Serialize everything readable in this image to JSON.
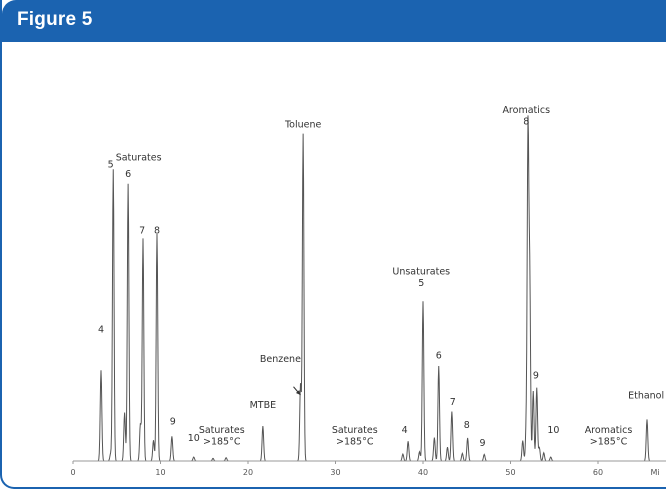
{
  "figure": {
    "title": "Figure 5"
  },
  "colors": {
    "header": "#1b63b0",
    "trace": "#555555",
    "text": "#333333"
  },
  "chart_data": {
    "type": "line",
    "title": "",
    "xlabel": "Mi",
    "ylabel": "",
    "xlim": [
      0,
      70
    ],
    "x_ticks": [
      0,
      10,
      20,
      30,
      40,
      50,
      60
    ],
    "grid": false,
    "legend": "none",
    "peaks": [
      {
        "x": 3.2,
        "h": 0.275
      },
      {
        "x": 4.3,
        "h": 0.022
      },
      {
        "x": 4.6,
        "h": 0.884
      },
      {
        "x": 5.9,
        "h": 0.147
      },
      {
        "x": 6.3,
        "h": 0.84
      },
      {
        "x": 7.7,
        "h": 0.112
      },
      {
        "x": 8.0,
        "h": 0.674
      },
      {
        "x": 9.2,
        "h": 0.063
      },
      {
        "x": 9.6,
        "h": 0.688
      },
      {
        "x": 11.3,
        "h": 0.075
      },
      {
        "x": 13.8,
        "h": 0.012
      },
      {
        "x": 16.0,
        "h": 0.008
      },
      {
        "x": 17.5,
        "h": 0.01
      },
      {
        "x": 21.7,
        "h": 0.106
      },
      {
        "x": 26.0,
        "h": 0.232
      },
      {
        "x": 26.3,
        "h": 0.991
      },
      {
        "x": 37.7,
        "h": 0.021
      },
      {
        "x": 38.3,
        "h": 0.06
      },
      {
        "x": 39.6,
        "h": 0.028
      },
      {
        "x": 40.0,
        "h": 0.484
      },
      {
        "x": 41.3,
        "h": 0.071
      },
      {
        "x": 41.8,
        "h": 0.288
      },
      {
        "x": 42.8,
        "h": 0.042
      },
      {
        "x": 43.3,
        "h": 0.15
      },
      {
        "x": 44.5,
        "h": 0.023
      },
      {
        "x": 45.1,
        "h": 0.07
      },
      {
        "x": 47.0,
        "h": 0.02
      },
      {
        "x": 51.4,
        "h": 0.062
      },
      {
        "x": 51.8,
        "h": 0.098
      },
      {
        "x": 52.0,
        "h": 0.993
      },
      {
        "x": 52.2,
        "h": 0.543
      },
      {
        "x": 52.6,
        "h": 0.212
      },
      {
        "x": 53.0,
        "h": 0.222
      },
      {
        "x": 53.3,
        "h": 0.04
      },
      {
        "x": 53.8,
        "h": 0.025
      },
      {
        "x": 54.6,
        "h": 0.012
      },
      {
        "x": 65.6,
        "h": 0.126
      }
    ],
    "annotations": [
      {
        "text": "4",
        "x": 3.2,
        "y": 0.39
      },
      {
        "text": "Saturates",
        "x": 7.5,
        "y": 0.91
      },
      {
        "text": "5",
        "x": 4.3,
        "y": 0.89
      },
      {
        "text": "6",
        "x": 6.3,
        "y": 0.86
      },
      {
        "text": "7",
        "x": 7.9,
        "y": 0.69
      },
      {
        "text": "8",
        "x": 9.6,
        "y": 0.69
      },
      {
        "text": "9",
        "x": 11.4,
        "y": 0.11
      },
      {
        "text": "10",
        "x": 13.8,
        "y": 0.06
      },
      {
        "text": "Saturates",
        "x": 17.0,
        "y": 0.085
      },
      {
        "text": ">185°C",
        "x": 17.0,
        "y": 0.05
      },
      {
        "text": "MTBE",
        "x": 21.7,
        "y": 0.16
      },
      {
        "text": "Benzene",
        "x": 23.7,
        "y": 0.3
      },
      {
        "text": "Toluene",
        "x": 26.3,
        "y": 1.01
      },
      {
        "text": "Saturates",
        "x": 32.2,
        "y": 0.085
      },
      {
        "text": ">185°C",
        "x": 32.2,
        "y": 0.05
      },
      {
        "text": "4",
        "x": 37.9,
        "y": 0.085
      },
      {
        "text": "Unsaturates",
        "x": 39.8,
        "y": 0.565
      },
      {
        "text": "5",
        "x": 39.8,
        "y": 0.53
      },
      {
        "text": "6",
        "x": 41.8,
        "y": 0.31
      },
      {
        "text": "7",
        "x": 43.4,
        "y": 0.17
      },
      {
        "text": "8",
        "x": 45.0,
        "y": 0.1
      },
      {
        "text": "9",
        "x": 46.8,
        "y": 0.045
      },
      {
        "text": "Aromatics",
        "x": 51.8,
        "y": 1.055
      },
      {
        "text": "8",
        "x": 51.8,
        "y": 1.02
      },
      {
        "text": "9",
        "x": 52.9,
        "y": 0.25
      },
      {
        "text": "10",
        "x": 54.9,
        "y": 0.085
      },
      {
        "text": "Aromatics",
        "x": 61.2,
        "y": 0.085
      },
      {
        "text": ">185°C",
        "x": 61.2,
        "y": 0.05
      },
      {
        "text": "Ethanol",
        "x": 65.5,
        "y": 0.19
      }
    ],
    "arrow": {
      "from_x": 25.2,
      "from_y": 0.225,
      "to_x": 26.0,
      "to_y": 0.2
    }
  }
}
